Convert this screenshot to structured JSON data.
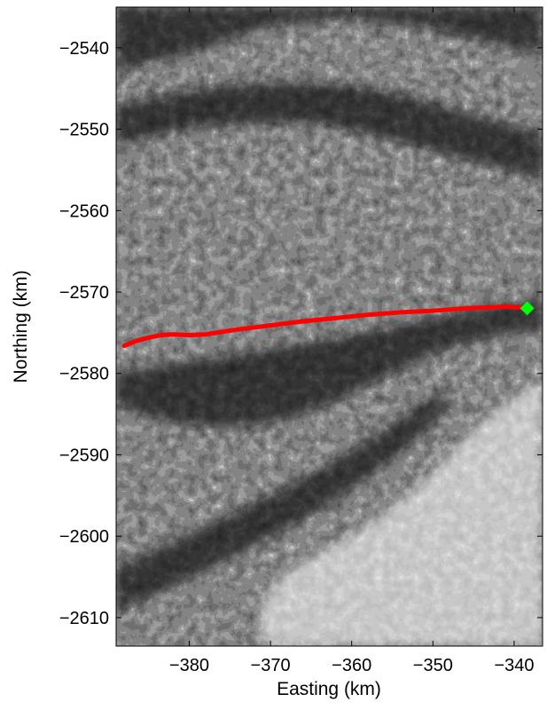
{
  "chart_data": {
    "type": "map",
    "xlabel": "Easting (km)",
    "ylabel": "Northing (km)",
    "xlim": [
      -389,
      -336.5
    ],
    "ylim": [
      -2613.5,
      -2535
    ],
    "xticks": [
      -380,
      -370,
      -360,
      -350,
      -340
    ],
    "yticks": [
      -2540,
      -2550,
      -2560,
      -2570,
      -2580,
      -2590,
      -2600,
      -2610
    ],
    "xtick_labels": [
      "−380",
      "−370",
      "−360",
      "−350",
      "−340"
    ],
    "ytick_labels": [
      "−2540",
      "−2550",
      "−2560",
      "−2570",
      "−2580",
      "−2590",
      "−2600",
      "−2610"
    ],
    "grid": false,
    "track": {
      "color": "#ff0000",
      "points": [
        [
          -388.0,
          -2576.6
        ],
        [
          -386.5,
          -2576.0
        ],
        [
          -385.0,
          -2575.6
        ],
        [
          -383.5,
          -2575.3
        ],
        [
          -382.0,
          -2575.2
        ],
        [
          -380.0,
          -2575.3
        ],
        [
          -378.0,
          -2575.2
        ],
        [
          -376.0,
          -2574.9
        ],
        [
          -374.0,
          -2574.6
        ],
        [
          -370.0,
          -2574.1
        ],
        [
          -366.0,
          -2573.6
        ],
        [
          -362.0,
          -2573.2
        ],
        [
          -358.0,
          -2572.8
        ],
        [
          -354.0,
          -2572.5
        ],
        [
          -350.0,
          -2572.3
        ],
        [
          -346.0,
          -2572.0
        ],
        [
          -343.0,
          -2571.9
        ],
        [
          -341.0,
          -2571.8
        ],
        [
          -339.5,
          -2571.9
        ],
        [
          -338.4,
          -2572.0
        ]
      ]
    },
    "endpoint_marker": {
      "x": -338.4,
      "y": -2572.0,
      "color": "#00ff00",
      "shape": "diamond"
    },
    "background_image": "grayscale satellite imagery of glaciated mountains with dark fjords"
  }
}
